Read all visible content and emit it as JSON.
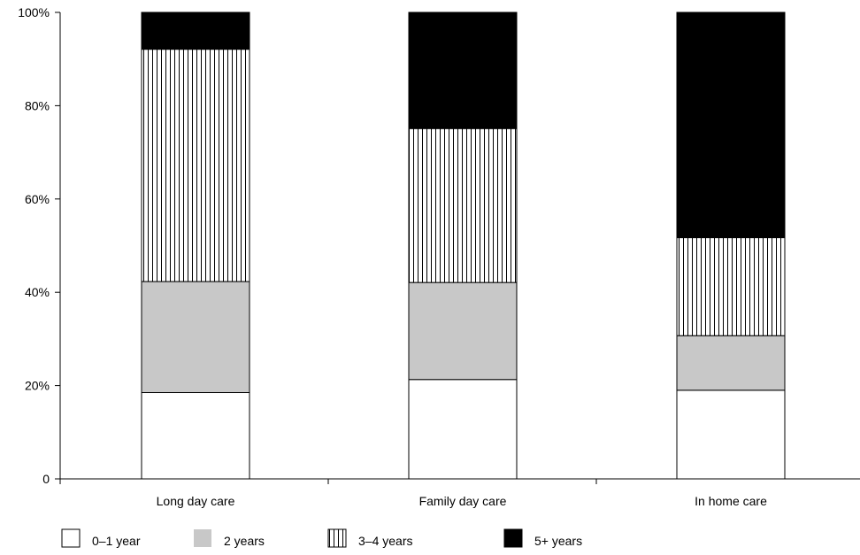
{
  "chart_data": {
    "type": "bar",
    "stacked": true,
    "percent_stacked": true,
    "title": "",
    "xlabel": "",
    "ylabel": "",
    "categories": [
      "Long day care",
      "Family day care",
      "In home care"
    ],
    "series": [
      {
        "name": "0–1 year",
        "values": [
          18.5,
          21.3,
          19.0
        ],
        "fill": "white"
      },
      {
        "name": "2 years",
        "values": [
          23.8,
          20.8,
          11.7
        ],
        "fill": "gray"
      },
      {
        "name": "3–4 years",
        "values": [
          49.8,
          33.0,
          21.0
        ],
        "fill": "vertical-hatch"
      },
      {
        "name": "5+ years",
        "values": [
          7.9,
          24.9,
          48.3
        ],
        "fill": "black"
      }
    ],
    "ylim": [
      0,
      100
    ],
    "yticks": [
      {
        "value": 0,
        "label": "0"
      },
      {
        "value": 20,
        "label": "20%"
      },
      {
        "value": 40,
        "label": "40%"
      },
      {
        "value": 60,
        "label": "60%"
      },
      {
        "value": 80,
        "label": "80%"
      },
      {
        "value": 100,
        "label": "100%"
      }
    ],
    "grid": false,
    "legend_position": "bottom-left",
    "colors": {
      "gray": "#c8c8c8",
      "black": "#000000",
      "white": "#ffffff",
      "line": "#000000"
    }
  }
}
